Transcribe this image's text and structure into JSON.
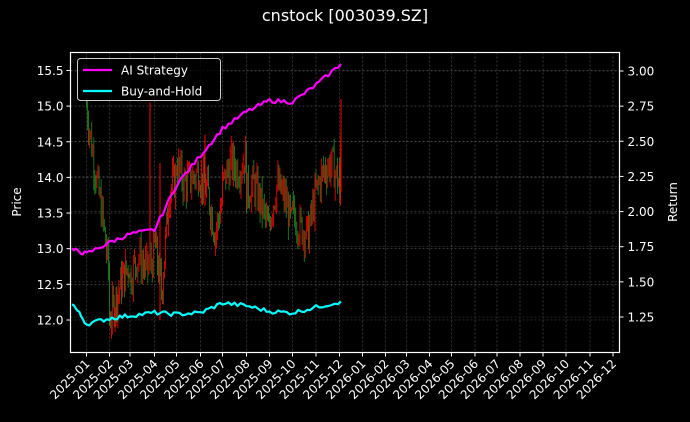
{
  "chart_data": {
    "type": "line",
    "title": "cnstock [003039.SZ]",
    "xlabel": "",
    "ylabel": "Price",
    "ylabel_right": "Return",
    "background": "#000000",
    "grid": true,
    "legend_position": "upper left",
    "x_tick_labels": [
      "2025-01",
      "2025-02",
      "2025-03",
      "2025-04",
      "2025-05",
      "2025-06",
      "2025-07",
      "2025-08",
      "2025-09",
      "2025-10",
      "2025-11",
      "2025-12",
      "2026-01",
      "2026-02",
      "2026-03",
      "2026-04",
      "2026-05",
      "2026-06",
      "2026-07",
      "2026-08",
      "2026-09",
      "2026-10",
      "2026-11",
      "2026-12"
    ],
    "y_left": {
      "ticks": [
        "12.0",
        "12.5",
        "13.0",
        "13.5",
        "14.0",
        "14.5",
        "15.0",
        "15.5"
      ],
      "ylim": [
        11.6,
        15.75
      ]
    },
    "y_right": {
      "ticks": [
        "1.25",
        "1.50",
        "1.75",
        "2.00",
        "2.25",
        "2.50",
        "2.75",
        "3.00"
      ],
      "ylim": [
        1.1,
        3.13
      ]
    },
    "candles": {
      "name": "Price (candlestick)",
      "up_color": "#ff0000",
      "down_color": "#228b22",
      "approx_close_by_month": {
        "2025-01": [
          15.0,
          14.2,
          13.5,
          12.6
        ],
        "2025-02": [
          12.0,
          12.3,
          12.6,
          12.8
        ],
        "2025-03": [
          12.6,
          12.9,
          12.7,
          12.9
        ],
        "2025-04": [
          13.1,
          12.4,
          13.8,
          14.0
        ],
        "2025-05": [
          14.2,
          13.9,
          14.0,
          14.1
        ],
        "2025-06": [
          14.0,
          13.8,
          13.2,
          13.7
        ],
        "2025-07": [
          13.9,
          14.2,
          14.1,
          14.3
        ],
        "2025-08": [
          13.8,
          13.9,
          13.6,
          13.2
        ],
        "2025-09": [
          13.4,
          13.9,
          13.7,
          13.3
        ],
        "2025-10": [
          13.5,
          13.3,
          13.2,
          13.8
        ],
        "2025-11": [
          13.8,
          14.1,
          14.2,
          13.9
        ],
        "2025-12": [
          14.0,
          13.8,
          14.6
        ]
      }
    },
    "series": [
      {
        "name": "AI Strategy",
        "color": "#ff00ff",
        "axis": "right",
        "x": [
          "2025-01",
          "2025-02",
          "2025-03",
          "2025-04",
          "2025-05",
          "2025-06",
          "2025-07",
          "2025-08",
          "2025-09",
          "2025-10",
          "2025-11",
          "2025-12",
          "2025-12-31"
        ],
        "values": [
          1.73,
          1.7,
          1.78,
          1.84,
          1.87,
          2.19,
          2.4,
          2.59,
          2.71,
          2.79,
          2.78,
          2.9,
          3.05
        ]
      },
      {
        "name": "Buy-and-Hold",
        "color": "#00ffff",
        "axis": "right",
        "x": [
          "2025-01",
          "2025-02",
          "2025-03",
          "2025-04",
          "2025-05",
          "2025-06",
          "2025-07",
          "2025-08",
          "2025-09",
          "2025-10",
          "2025-11",
          "2025-12",
          "2025-12-31"
        ],
        "values": [
          1.35,
          1.2,
          1.24,
          1.26,
          1.28,
          1.27,
          1.28,
          1.35,
          1.33,
          1.29,
          1.28,
          1.32,
          1.36
        ]
      }
    ]
  },
  "legend": {
    "items": [
      "AI Strategy",
      "Buy-and-Hold"
    ]
  }
}
